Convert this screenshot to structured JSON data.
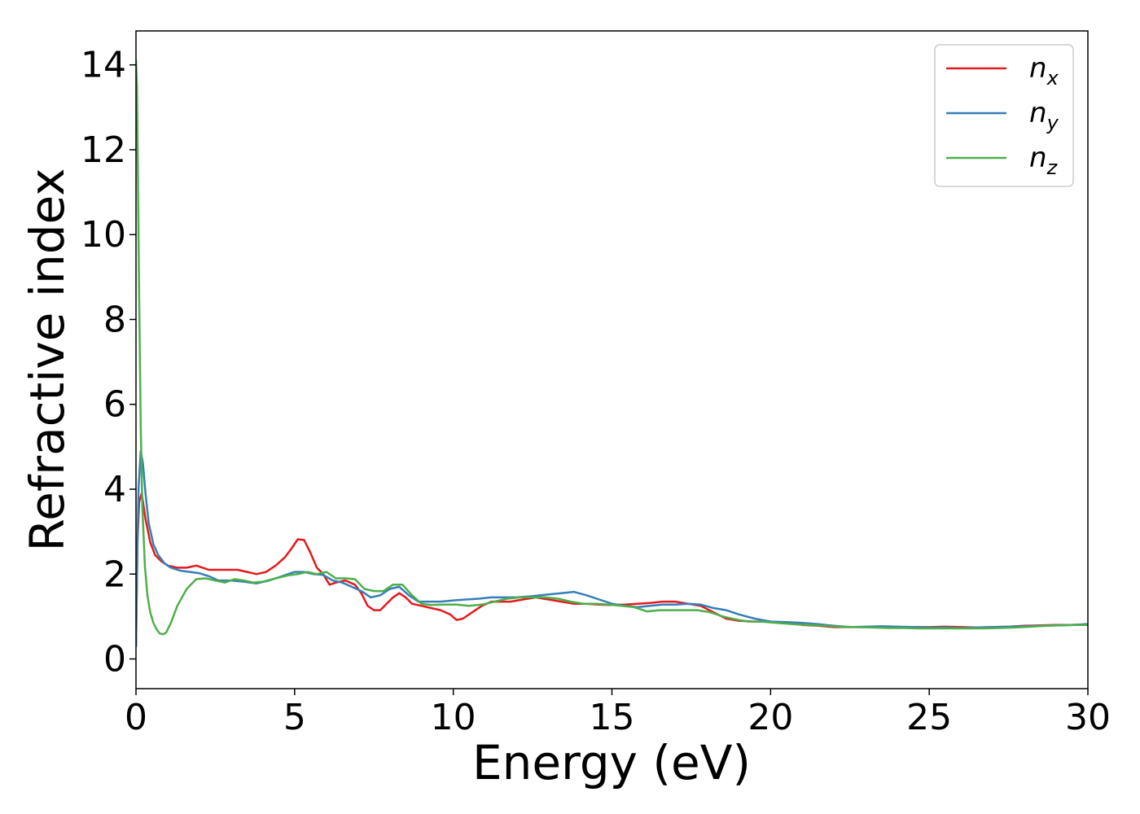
{
  "chart_data": {
    "type": "line",
    "xlabel": "Energy (eV)",
    "ylabel": "Refractive index",
    "xlim": [
      0,
      30
    ],
    "ylim": [
      -0.7,
      14.8
    ],
    "xticks": [
      0,
      5,
      10,
      15,
      20,
      25,
      30
    ],
    "xtick_labels": [
      "0",
      "5",
      "10",
      "15",
      "20",
      "25",
      "30"
    ],
    "yticks": [
      0,
      2,
      4,
      6,
      8,
      10,
      12,
      14
    ],
    "ytick_labels": [
      "0",
      "2",
      "4",
      "6",
      "8",
      "10",
      "12",
      "14"
    ],
    "grid": false,
    "legend_position": "top-right",
    "series": [
      {
        "name": "n",
        "sub": "x",
        "color": "#e41a1c",
        "x": [
          0,
          0.05,
          0.1,
          0.18,
          0.3,
          0.45,
          0.6,
          0.8,
          1.0,
          1.3,
          1.6,
          1.9,
          2.1,
          2.3,
          2.6,
          2.9,
          3.2,
          3.5,
          3.8,
          4.1,
          4.4,
          4.7,
          4.9,
          5.1,
          5.3,
          5.5,
          5.7,
          5.9,
          6.1,
          6.3,
          6.6,
          6.9,
          7.1,
          7.3,
          7.5,
          7.7,
          7.9,
          8.1,
          8.3,
          8.5,
          8.7,
          9.0,
          9.3,
          9.6,
          9.9,
          10.1,
          10.3,
          10.6,
          10.9,
          11.2,
          11.5,
          11.8,
          12.2,
          12.6,
          13.0,
          13.4,
          13.8,
          14.2,
          14.6,
          15.0,
          15.4,
          15.8,
          16.2,
          16.6,
          17.0,
          17.4,
          17.8,
          18.2,
          18.6,
          19.0,
          19.5,
          20.0,
          20.5,
          21.0,
          21.5,
          22.0,
          22.5,
          23.0,
          23.5,
          24.0,
          24.5,
          25.0,
          25.5,
          26.0,
          26.5,
          27.0,
          27.5,
          28.0,
          28.5,
          29.0,
          29.5,
          30.0
        ],
        "values": [
          0.3,
          2.8,
          3.7,
          3.9,
          3.3,
          2.75,
          2.45,
          2.3,
          2.2,
          2.15,
          2.15,
          2.2,
          2.15,
          2.1,
          2.1,
          2.1,
          2.1,
          2.05,
          2.0,
          2.05,
          2.2,
          2.4,
          2.6,
          2.82,
          2.8,
          2.5,
          2.15,
          2.0,
          1.75,
          1.8,
          1.85,
          1.75,
          1.55,
          1.25,
          1.15,
          1.15,
          1.3,
          1.45,
          1.55,
          1.45,
          1.3,
          1.25,
          1.2,
          1.15,
          1.05,
          0.92,
          0.95,
          1.1,
          1.25,
          1.35,
          1.35,
          1.35,
          1.4,
          1.45,
          1.4,
          1.35,
          1.3,
          1.3,
          1.28,
          1.27,
          1.28,
          1.3,
          1.32,
          1.35,
          1.35,
          1.3,
          1.25,
          1.1,
          0.95,
          0.9,
          0.88,
          0.88,
          0.85,
          0.8,
          0.78,
          0.75,
          0.75,
          0.75,
          0.75,
          0.75,
          0.75,
          0.75,
          0.76,
          0.75,
          0.74,
          0.75,
          0.76,
          0.78,
          0.79,
          0.8,
          0.8,
          0.82
        ]
      },
      {
        "name": "n",
        "sub": "y",
        "color": "#377eb8",
        "x": [
          0,
          0.04,
          0.08,
          0.15,
          0.22,
          0.3,
          0.4,
          0.55,
          0.7,
          0.9,
          1.1,
          1.4,
          1.7,
          2.0,
          2.3,
          2.6,
          3.0,
          3.4,
          3.8,
          4.2,
          4.6,
          5.0,
          5.3,
          5.6,
          5.9,
          6.2,
          6.5,
          6.8,
          7.1,
          7.4,
          7.7,
          8.0,
          8.3,
          8.6,
          8.9,
          9.2,
          9.6,
          10.0,
          10.4,
          10.8,
          11.2,
          11.6,
          12.0,
          12.5,
          13.0,
          13.4,
          13.8,
          14.2,
          14.6,
          15.0,
          15.4,
          15.8,
          16.2,
          16.6,
          17.0,
          17.4,
          17.8,
          18.2,
          18.6,
          19.0,
          19.5,
          20.0,
          20.5,
          21.0,
          21.5,
          22.0,
          22.5,
          23.0,
          23.5,
          24.0,
          24.5,
          25.0,
          25.5,
          26.0,
          26.5,
          27.0,
          27.5,
          28.0,
          28.5,
          29.0,
          29.5,
          30.0
        ],
        "values": [
          0.3,
          2.5,
          4.0,
          4.9,
          4.6,
          3.9,
          3.2,
          2.7,
          2.45,
          2.25,
          2.15,
          2.08,
          2.05,
          2.02,
          1.95,
          1.85,
          1.85,
          1.82,
          1.78,
          1.85,
          1.95,
          2.05,
          2.05,
          2.0,
          1.98,
          1.85,
          1.8,
          1.7,
          1.6,
          1.45,
          1.5,
          1.65,
          1.7,
          1.5,
          1.35,
          1.35,
          1.35,
          1.38,
          1.4,
          1.42,
          1.45,
          1.45,
          1.45,
          1.48,
          1.52,
          1.55,
          1.58,
          1.5,
          1.4,
          1.3,
          1.25,
          1.22,
          1.25,
          1.28,
          1.28,
          1.3,
          1.28,
          1.2,
          1.15,
          1.05,
          0.95,
          0.88,
          0.87,
          0.85,
          0.82,
          0.78,
          0.75,
          0.76,
          0.77,
          0.76,
          0.75,
          0.74,
          0.74,
          0.73,
          0.74,
          0.75,
          0.76,
          0.77,
          0.78,
          0.79,
          0.8,
          0.82
        ]
      },
      {
        "name": "n",
        "sub": "z",
        "color": "#4daf4a",
        "x": [
          0,
          0.03,
          0.06,
          0.1,
          0.15,
          0.2,
          0.28,
          0.36,
          0.45,
          0.55,
          0.65,
          0.75,
          0.85,
          0.95,
          1.1,
          1.3,
          1.6,
          1.9,
          2.2,
          2.5,
          2.8,
          3.1,
          3.4,
          3.7,
          4.0,
          4.4,
          4.8,
          5.1,
          5.4,
          5.7,
          6.0,
          6.3,
          6.6,
          6.9,
          7.2,
          7.5,
          7.8,
          8.1,
          8.4,
          8.7,
          9.0,
          9.3,
          9.7,
          10.1,
          10.5,
          10.9,
          11.3,
          11.7,
          12.1,
          12.5,
          12.9,
          13.3,
          13.7,
          14.1,
          14.5,
          14.9,
          15.3,
          15.7,
          16.1,
          16.5,
          16.9,
          17.3,
          17.7,
          18.1,
          18.5,
          18.9,
          19.3,
          19.7,
          20.2,
          20.7,
          21.2,
          21.7,
          22.2,
          22.7,
          23.2,
          23.7,
          24.2,
          24.7,
          25.2,
          25.7,
          26.2,
          26.7,
          27.2,
          27.7,
          28.2,
          28.7,
          29.2,
          29.6,
          30.0
        ],
        "values": [
          14.1,
          13.5,
          11.5,
          8.5,
          5.5,
          3.6,
          2.2,
          1.5,
          1.1,
          0.85,
          0.7,
          0.6,
          0.58,
          0.62,
          0.85,
          1.25,
          1.65,
          1.88,
          1.9,
          1.85,
          1.8,
          1.88,
          1.85,
          1.8,
          1.82,
          1.9,
          1.97,
          2.0,
          2.05,
          2.0,
          2.05,
          1.9,
          1.9,
          1.88,
          1.65,
          1.6,
          1.6,
          1.75,
          1.75,
          1.5,
          1.3,
          1.27,
          1.28,
          1.28,
          1.25,
          1.28,
          1.35,
          1.42,
          1.45,
          1.45,
          1.45,
          1.42,
          1.35,
          1.3,
          1.3,
          1.28,
          1.25,
          1.22,
          1.12,
          1.15,
          1.15,
          1.15,
          1.15,
          1.1,
          1.0,
          0.93,
          0.88,
          0.88,
          0.85,
          0.82,
          0.8,
          0.78,
          0.76,
          0.75,
          0.74,
          0.73,
          0.73,
          0.72,
          0.72,
          0.72,
          0.72,
          0.72,
          0.73,
          0.74,
          0.76,
          0.78,
          0.79,
          0.8,
          0.8
        ]
      }
    ]
  }
}
